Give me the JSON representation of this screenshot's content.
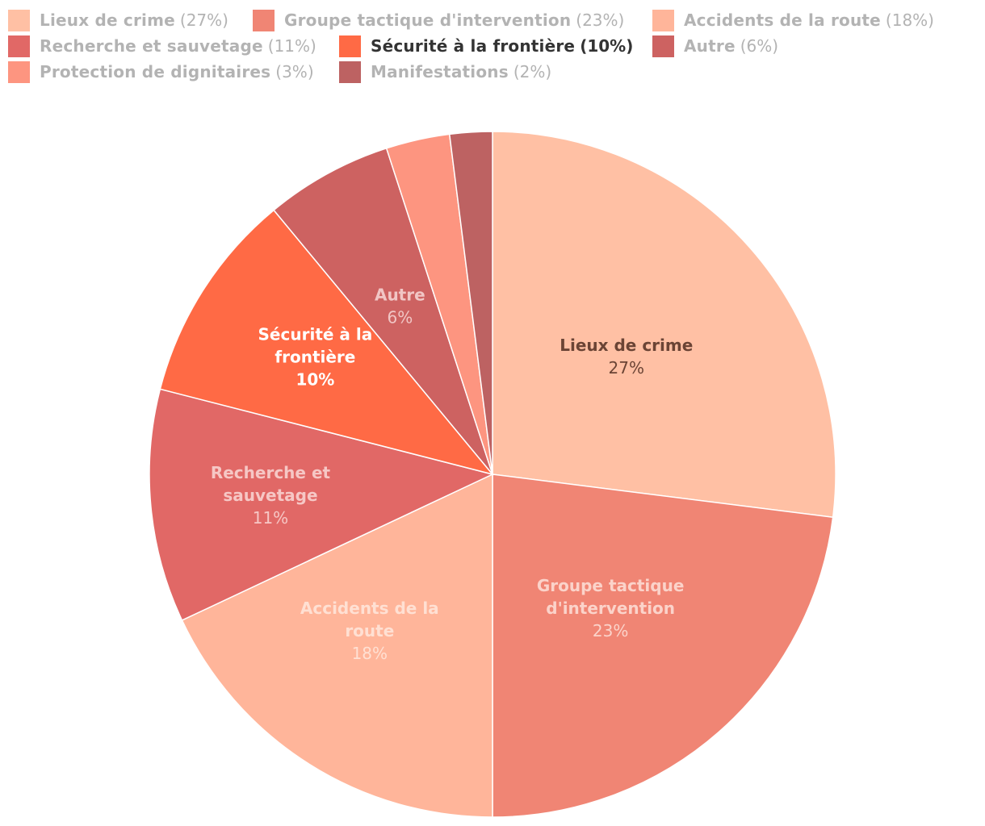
{
  "chart_data": {
    "type": "pie",
    "title": "",
    "highlighted": "Sécurité à la frontière",
    "slices": [
      {
        "label": "Lieux de crime",
        "value": 27,
        "pct_text": "27%",
        "legend_pct": "(27%)",
        "color": "#ffc0a4",
        "label_color": "#6b4435",
        "label_lines": [
          "Lieux de crime"
        ]
      },
      {
        "label": "Groupe tactique d'intervention",
        "value": 23,
        "pct_text": "23%",
        "legend_pct": "(23%)",
        "color": "#f08574",
        "label_color": "#fbd3ca",
        "label_lines": [
          "Groupe tactique",
          "d'intervention"
        ]
      },
      {
        "label": "Accidents de la route",
        "value": 18,
        "pct_text": "18%",
        "legend_pct": "(18%)",
        "color": "#ffb59a",
        "label_color": "#ffe0d3",
        "label_lines": [
          "Accidents de la",
          "route"
        ]
      },
      {
        "label": "Recherche et sauvetage",
        "value": 11,
        "pct_text": "11%",
        "legend_pct": "(11%)",
        "color": "#e16866",
        "label_color": "#f6c7c5",
        "label_lines": [
          "Recherche et",
          "sauvetage"
        ]
      },
      {
        "label": "Sécurité à la frontière",
        "value": 10,
        "pct_text": "10%",
        "legend_pct": "(10%)",
        "color": "#ff6a45",
        "label_color": "#ffffff",
        "label_lines": [
          "Sécurité à la",
          "frontière"
        ]
      },
      {
        "label": "Autre",
        "value": 6,
        "pct_text": "6%",
        "legend_pct": "(6%)",
        "color": "#cd6261",
        "label_color": "#f1c6c5",
        "label_lines": [
          "Autre"
        ]
      },
      {
        "label": "Protection de dignitaires",
        "value": 3,
        "pct_text": "3%",
        "legend_pct": "(3%)",
        "color": "#fd9580",
        "label_color": "#ffffff",
        "label_lines": []
      },
      {
        "label": "Manifestations",
        "value": 2,
        "pct_text": "2%",
        "legend_pct": "(2%)",
        "color": "#bd6262",
        "label_color": "#ffffff",
        "label_lines": []
      }
    ]
  }
}
